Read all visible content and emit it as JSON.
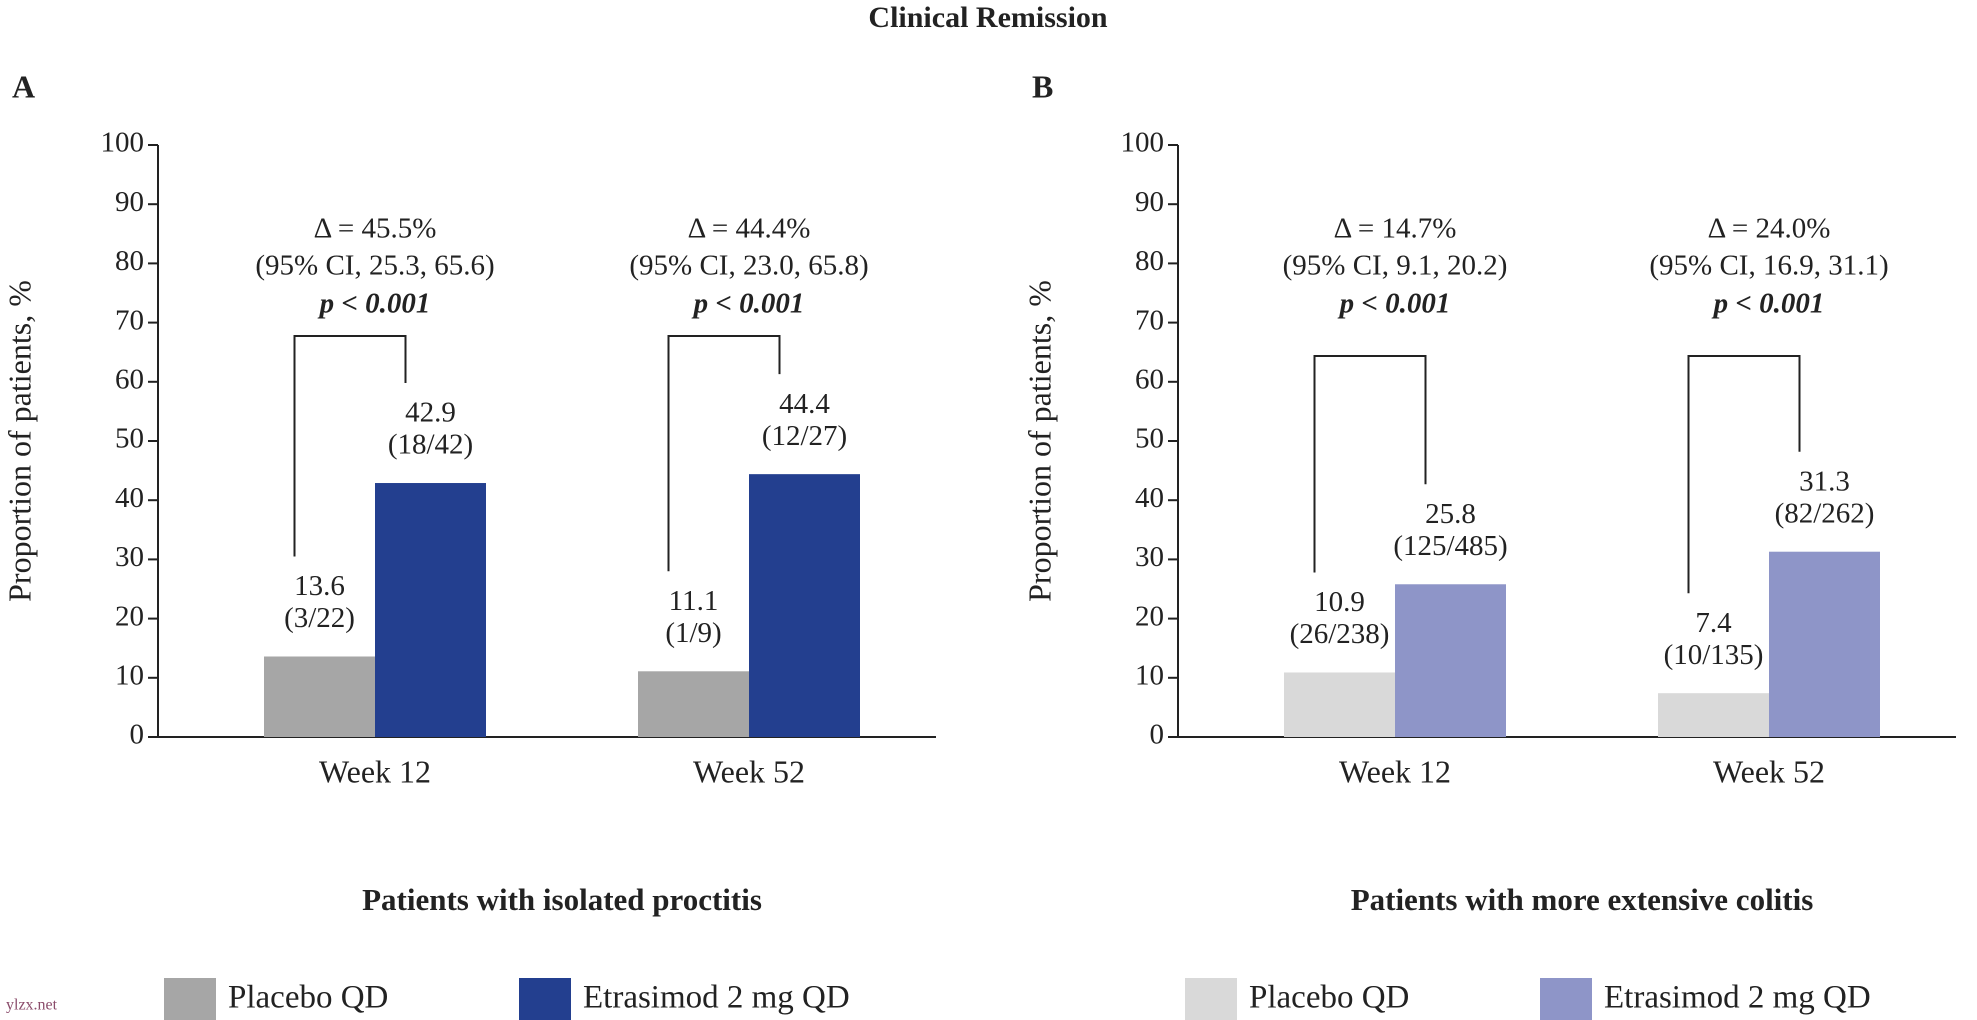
{
  "title": "Clinical Remission",
  "watermark": "ylzx.net",
  "chart_data": [
    {
      "type": "bar",
      "panel": "A",
      "ylabel": "Proportion of patients, %",
      "subtitle": "Patients with isolated proctitis",
      "categories": [
        "Week 12",
        "Week 52"
      ],
      "series": [
        {
          "name": "Placebo QD",
          "color": "#a6a6a6",
          "values": [
            13.6,
            11.1
          ],
          "counts": [
            "(3/22)",
            "(1/9)"
          ]
        },
        {
          "name": "Etrasimod 2 mg QD",
          "color": "#233f8f",
          "values": [
            42.9,
            44.4
          ],
          "counts": [
            "(18/42)",
            "(12/27)"
          ]
        }
      ],
      "annotations": [
        {
          "delta": "Δ = 45.5%",
          "ci": "(95% CI, 25.3, 65.6)",
          "p": "p < 0.001"
        },
        {
          "delta": "Δ = 44.4%",
          "ci": "(95% CI, 23.0, 65.8)",
          "p": "p < 0.001"
        }
      ],
      "ylim": [
        0,
        100
      ],
      "yticks": [
        0,
        10,
        20,
        30,
        40,
        50,
        60,
        70,
        80,
        90,
        100
      ]
    },
    {
      "type": "bar",
      "panel": "B",
      "ylabel": "Proportion of patients, %",
      "subtitle": "Patients with more extensive colitis",
      "categories": [
        "Week 12",
        "Week 52"
      ],
      "series": [
        {
          "name": "Placebo QD",
          "color": "#d9d9d9",
          "values": [
            10.9,
            7.4
          ],
          "counts": [
            "(26/238)",
            "(10/135)"
          ]
        },
        {
          "name": "Etrasimod 2 mg QD",
          "color": "#8e95c8",
          "values": [
            25.8,
            31.3
          ],
          "counts": [
            "(125/485)",
            "(82/262)"
          ]
        }
      ],
      "annotations": [
        {
          "delta": "Δ = 14.7%",
          "ci": "(95% CI, 9.1, 20.2)",
          "p": "p < 0.001"
        },
        {
          "delta": "Δ = 24.0%",
          "ci": "(95% CI, 16.9, 31.1)",
          "p": "p < 0.001"
        }
      ],
      "ylim": [
        0,
        100
      ],
      "yticks": [
        0,
        10,
        20,
        30,
        40,
        50,
        60,
        70,
        80,
        90,
        100
      ]
    }
  ]
}
